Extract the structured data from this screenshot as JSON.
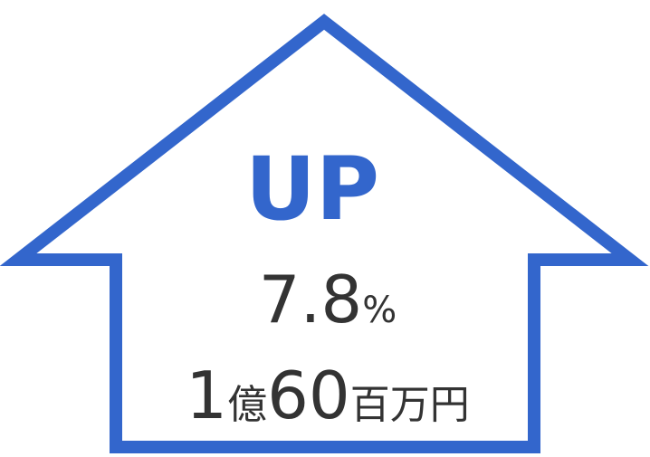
{
  "badge": {
    "label": "UP",
    "rate": {
      "value": "7.8",
      "unit": "%"
    },
    "amount": {
      "parts": [
        "1",
        "億",
        "60",
        "百万円"
      ]
    }
  }
}
